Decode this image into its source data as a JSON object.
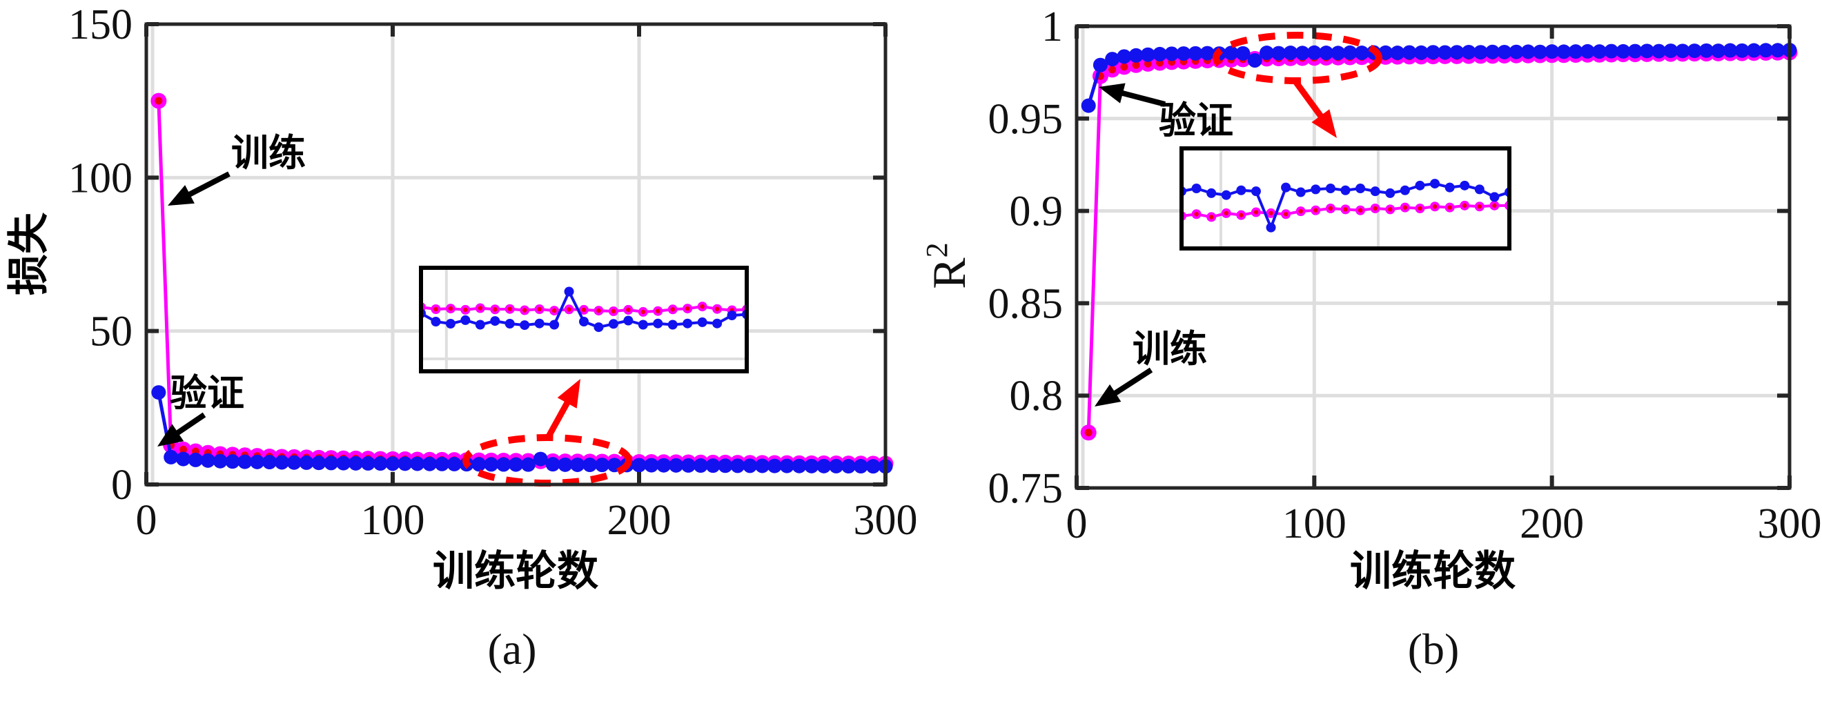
{
  "figure": {
    "background": "#ffffff",
    "colors": {
      "train_line": "#ff00ff",
      "train_marker_center": "#ee0011",
      "validation": "#1212ee",
      "frame": "#262626",
      "grid": "#dedede",
      "highlight_red": "#ff0000",
      "annotation_black": "#000000"
    }
  },
  "chart_data": [
    {
      "type": "line",
      "panel_label": "(a)",
      "xlabel": "训练轮数",
      "ylabel": "损失",
      "xlim": [
        0,
        300
      ],
      "ylim": [
        0,
        150
      ],
      "xticks": [
        0,
        100,
        200,
        300
      ],
      "xtick_labels": [
        "0",
        "100",
        "200",
        "300"
      ],
      "yticks": [
        0,
        50,
        100,
        150
      ],
      "ytick_labels": [
        "0",
        "50",
        "100",
        "150"
      ],
      "grid": true,
      "legend": "none (arrow annotations instead)",
      "series": [
        {
          "name": "训练",
          "role": "train",
          "x": [
            5,
            10,
            15,
            20,
            25,
            30,
            35,
            40,
            45,
            50,
            55,
            60,
            65,
            70,
            75,
            80,
            85,
            90,
            95,
            100,
            105,
            110,
            115,
            120,
            125,
            130,
            135,
            140,
            145,
            150,
            155,
            160,
            165,
            170,
            175,
            180,
            185,
            190,
            195,
            200,
            205,
            210,
            215,
            220,
            225,
            230,
            235,
            240,
            245,
            250,
            255,
            260,
            265,
            270,
            275,
            280,
            285,
            290,
            295,
            300
          ],
          "y": [
            125,
            12.8,
            11.4,
            10.8,
            10.3,
            9.9,
            9.7,
            9.5,
            9.3,
            9.1,
            9.0,
            8.9,
            8.8,
            8.7,
            8.6,
            8.5,
            8.45,
            8.4,
            8.3,
            8.25,
            8.2,
            8.1,
            8.05,
            8.0,
            7.95,
            7.9,
            7.85,
            7.8,
            7.75,
            7.7,
            7.65,
            7.6,
            7.55,
            7.5,
            7.48,
            7.45,
            7.42,
            7.4,
            7.35,
            7.32,
            7.3,
            7.25,
            7.22,
            7.2,
            7.15,
            7.12,
            7.1,
            7.05,
            7.02,
            7.0,
            6.98,
            6.95,
            6.92,
            6.9,
            6.88,
            6.85,
            6.82,
            6.8,
            6.78,
            6.75
          ]
        },
        {
          "name": "验证",
          "role": "validation",
          "x": [
            5,
            10,
            15,
            20,
            25,
            30,
            35,
            40,
            45,
            50,
            55,
            60,
            65,
            70,
            75,
            80,
            85,
            90,
            95,
            100,
            105,
            110,
            115,
            120,
            125,
            130,
            135,
            140,
            145,
            150,
            155,
            160,
            165,
            170,
            175,
            180,
            185,
            190,
            195,
            200,
            205,
            210,
            215,
            220,
            225,
            230,
            235,
            240,
            245,
            250,
            255,
            260,
            265,
            270,
            275,
            280,
            285,
            290,
            295,
            300
          ],
          "y": [
            30,
            8.9,
            8.3,
            8.0,
            7.8,
            7.6,
            7.5,
            7.4,
            7.35,
            7.3,
            7.2,
            7.15,
            7.1,
            7.05,
            7.0,
            6.95,
            6.9,
            6.88,
            6.85,
            6.8,
            6.78,
            6.75,
            6.7,
            6.68,
            6.65,
            6.6,
            6.58,
            6.55,
            6.52,
            6.5,
            6.48,
            8.3,
            6.6,
            6.45,
            6.42,
            6.4,
            6.38,
            6.35,
            6.32,
            6.3,
            6.28,
            6.25,
            6.22,
            6.2,
            6.18,
            6.15,
            6.12,
            6.1,
            6.1,
            6.08,
            6.05,
            6.05,
            6.02,
            6.0,
            6.0,
            5.98,
            5.95,
            5.95,
            5.92,
            5.9
          ]
        }
      ],
      "annotations": [
        {
          "label": "训练",
          "points_to": "training curve near epoch 3, loss ≈ 90"
        },
        {
          "label": "验证",
          "points_to": "validation curve near epoch 8, loss ≈ 12"
        }
      ],
      "highlight": {
        "shape": "dashed ellipse",
        "center_epoch": 163,
        "center_value": 7.9,
        "rx_epochs": 33,
        "ry_value": 7.4
      },
      "inset": {
        "x_range": [
          131,
          197
        ],
        "y_range": [
          4.45,
          9.45
        ],
        "grid_x_rel": [
          0.078,
          0.604
        ],
        "grid_y_rel": [
          0.88
        ],
        "series": [
          {
            "role": "train",
            "x": [
              131,
              134,
              137,
              140,
              143,
              146,
              149,
              152,
              155,
              158,
              161,
              164,
              167,
              170,
              173,
              176,
              179,
              182,
              185,
              188,
              191,
              194,
              197
            ],
            "y": [
              7.55,
              7.45,
              7.48,
              7.42,
              7.5,
              7.44,
              7.46,
              7.4,
              7.45,
              7.38,
              7.44,
              7.42,
              7.38,
              7.35,
              7.42,
              7.32,
              7.36,
              7.44,
              7.48,
              7.58,
              7.46,
              7.4,
              7.44
            ]
          },
          {
            "role": "validation",
            "x": [
              131,
              134,
              137,
              140,
              143,
              146,
              149,
              152,
              155,
              158,
              161,
              164,
              167,
              170,
              173,
              176,
              179,
              182,
              185,
              188,
              191,
              194,
              197
            ],
            "y": [
              7.25,
              6.85,
              6.75,
              6.92,
              6.7,
              6.88,
              6.75,
              6.68,
              6.76,
              6.7,
              8.3,
              6.85,
              6.58,
              6.74,
              6.9,
              6.7,
              6.76,
              6.7,
              6.76,
              6.82,
              6.76,
              7.15,
              7.2
            ]
          }
        ]
      },
      "layout": {
        "frame": [
          212,
          35,
          1283,
          702
        ],
        "inset_box": [
          610,
          388,
          472,
          150
        ],
        "ellipse": [
          793,
          667,
          118,
          33
        ],
        "red_arrow": {
          "from": [
            794,
            634
          ],
          "to": [
            841,
            549
          ]
        },
        "black_arrows": [
          [
            332,
            252,
            243,
            298
          ],
          [
            296,
            601,
            228,
            647
          ]
        ],
        "ann_text_pos": [
          [
            389,
            240
          ],
          [
            300,
            588
          ]
        ],
        "ylabel_pos": [
          62,
          368
        ],
        "xlabel_pos": [
          747,
          848
        ],
        "panel_label_pos": [
          742,
          962
        ]
      }
    },
    {
      "type": "line",
      "panel_label": "(b)",
      "xlabel": "训练轮数",
      "ylabel": "R2",
      "ylabel_base": "R",
      "ylabel_sup": "2",
      "xlim": [
        0,
        300
      ],
      "ylim": [
        0.75,
        1.0
      ],
      "xticks": [
        0,
        100,
        200,
        300
      ],
      "xtick_labels": [
        "0",
        "100",
        "200",
        "300"
      ],
      "yticks": [
        0.75,
        0.8,
        0.85,
        0.9,
        0.95,
        1.0
      ],
      "ytick_labels": [
        "0.75",
        "0.8",
        "0.85",
        "0.9",
        "0.95",
        "1"
      ],
      "grid": true,
      "legend": "none (arrow annotations instead)",
      "series": [
        {
          "name": "训练",
          "role": "train",
          "x": [
            5,
            10,
            15,
            20,
            25,
            30,
            35,
            40,
            45,
            50,
            55,
            60,
            65,
            70,
            75,
            80,
            85,
            90,
            95,
            100,
            105,
            110,
            115,
            120,
            125,
            130,
            135,
            140,
            145,
            150,
            155,
            160,
            165,
            170,
            175,
            180,
            185,
            190,
            195,
            200,
            205,
            210,
            215,
            220,
            225,
            230,
            235,
            240,
            245,
            250,
            255,
            260,
            265,
            270,
            275,
            280,
            285,
            290,
            295,
            300
          ],
          "y": [
            0.78,
            0.973,
            0.9765,
            0.978,
            0.979,
            0.9797,
            0.9802,
            0.9806,
            0.9809,
            0.9812,
            0.9815,
            0.9817,
            0.9819,
            0.9821,
            0.9823,
            0.9825,
            0.9826,
            0.9827,
            0.9828,
            0.9829,
            0.983,
            0.9831,
            0.9832,
            0.9833,
            0.9834,
            0.9834,
            0.9835,
            0.9836,
            0.9836,
            0.9837,
            0.9838,
            0.9838,
            0.9839,
            0.984,
            0.984,
            0.9841,
            0.9842,
            0.9842,
            0.9843,
            0.9844,
            0.9844,
            0.9845,
            0.9846,
            0.9846,
            0.9847,
            0.9848,
            0.9848,
            0.9849,
            0.985,
            0.985,
            0.9851,
            0.9852,
            0.9852,
            0.9853,
            0.9854,
            0.9854,
            0.9855,
            0.9856,
            0.9857,
            0.9858
          ]
        },
        {
          "name": "验证",
          "role": "validation",
          "x": [
            5,
            10,
            15,
            20,
            25,
            30,
            35,
            40,
            45,
            50,
            55,
            60,
            65,
            70,
            75,
            80,
            85,
            90,
            95,
            100,
            105,
            110,
            115,
            120,
            125,
            130,
            135,
            140,
            145,
            150,
            155,
            160,
            165,
            170,
            175,
            180,
            185,
            190,
            195,
            200,
            205,
            210,
            215,
            220,
            225,
            230,
            235,
            240,
            245,
            250,
            255,
            260,
            265,
            270,
            275,
            280,
            285,
            290,
            295,
            300
          ],
          "y": [
            0.957,
            0.979,
            0.9822,
            0.9836,
            0.9842,
            0.9846,
            0.9849,
            0.9851,
            0.9852,
            0.9853,
            0.9854,
            0.9852,
            0.9855,
            0.9853,
            0.9815,
            0.9856,
            0.9854,
            0.9856,
            0.9855,
            0.9857,
            0.9856,
            0.9855,
            0.9857,
            0.9856,
            0.9858,
            0.9857,
            0.9856,
            0.9858,
            0.9857,
            0.9859,
            0.9858,
            0.9859,
            0.986,
            0.9859,
            0.9861,
            0.986,
            0.9861,
            0.9862,
            0.9861,
            0.9863,
            0.9862,
            0.9863,
            0.9864,
            0.9863,
            0.9865,
            0.9864,
            0.9865,
            0.9866,
            0.9865,
            0.9867,
            0.9866,
            0.9867,
            0.9868,
            0.9867,
            0.9869,
            0.9868,
            0.9869,
            0.987,
            0.987,
            0.9871
          ]
        }
      ],
      "annotations": [
        {
          "label": "验证",
          "points_to": "validation curve near epoch 5, R² ≈ 0.97"
        },
        {
          "label": "训练",
          "points_to": "training curve near epoch 5, R² ≈ 0.8"
        }
      ],
      "highlight": {
        "shape": "dashed ellipse",
        "center_epoch": 93,
        "center_value": 0.9828,
        "rx_epochs": 34,
        "ry_value": 0.0123
      },
      "inset": {
        "x_range": [
          59,
          125
        ],
        "y_range": [
          0.9793,
          0.9898
        ],
        "grid_x_rel": [
          0.12,
          0.6
        ],
        "grid_y_rel": [],
        "series": [
          {
            "role": "train",
            "x": [
              59,
              62,
              65,
              68,
              71,
              74,
              77,
              80,
              83,
              86,
              89,
              92,
              95,
              98,
              101,
              104,
              107,
              110,
              113,
              116,
              119,
              122,
              125
            ],
            "y": [
              0.9827,
              0.9829,
              0.9826,
              0.983,
              0.9828,
              0.9831,
              0.983,
              0.9829,
              0.9832,
              0.9833,
              0.9835,
              0.9834,
              0.9833,
              0.9835,
              0.9834,
              0.9836,
              0.9835,
              0.9837,
              0.9836,
              0.9838,
              0.9837,
              0.9838,
              0.9838
            ]
          },
          {
            "role": "validation",
            "x": [
              59,
              62,
              65,
              68,
              71,
              74,
              77,
              80,
              83,
              86,
              89,
              92,
              95,
              98,
              101,
              104,
              107,
              110,
              113,
              116,
              119,
              122,
              125
            ],
            "y": [
              0.9853,
              0.9856,
              0.9851,
              0.9849,
              0.9854,
              0.9853,
              0.9815,
              0.9857,
              0.9852,
              0.9855,
              0.9856,
              0.9854,
              0.9856,
              0.9853,
              0.9851,
              0.9854,
              0.9859,
              0.9861,
              0.9857,
              0.9859,
              0.9855,
              0.9847,
              0.9852
            ]
          }
        ]
      },
      "layout": {
        "frame": [
          1560,
          38,
          2593,
          707
        ],
        "inset_box": [
          1712,
          215,
          475,
          145
        ],
        "ellipse": [
          1880,
          84,
          118,
          33
        ],
        "red_arrow": {
          "from": [
            1877,
            118
          ],
          "to": [
            1937,
            200
          ]
        },
        "black_arrows": [
          [
            1688,
            151,
            1592,
            126
          ],
          [
            1668,
            536,
            1586,
            589
          ]
        ],
        "ann_text_pos": [
          [
            1733,
            193
          ],
          [
            1695,
            524
          ]
        ],
        "ylabel_pos": [
          1398,
          385
        ],
        "xlabel_pos": [
          2076,
          848
        ],
        "panel_label_pos": [
          2077,
          962
        ]
      }
    }
  ]
}
